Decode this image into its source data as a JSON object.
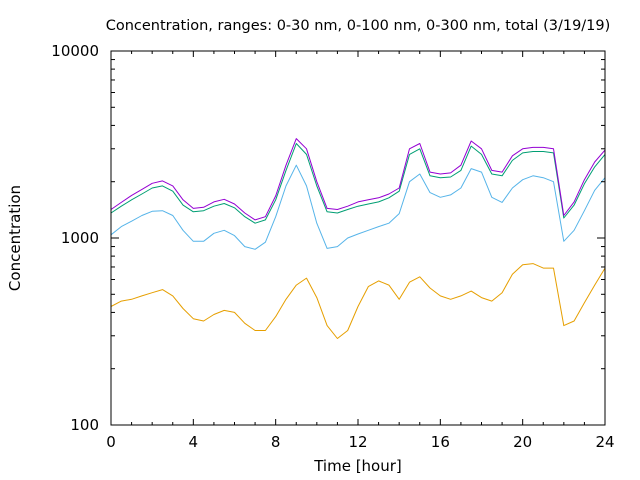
{
  "chart_data": {
    "type": "line",
    "title": "Concentration, ranges: 0-30 nm, 0-100 nm, 0-300 nm, total (3/19/19)",
    "xlabel": "Time [hour]",
    "ylabel": "Concentration",
    "xlim": [
      0,
      24
    ],
    "ylim": [
      100,
      10000
    ],
    "yscale": "log",
    "grid": false,
    "legend": "none",
    "x_ticks": [
      {
        "value": 0,
        "label": "0"
      },
      {
        "value": 4,
        "label": "4"
      },
      {
        "value": 8,
        "label": "8"
      },
      {
        "value": 12,
        "label": "12"
      },
      {
        "value": 16,
        "label": "16"
      },
      {
        "value": 20,
        "label": "20"
      },
      {
        "value": 24,
        "label": "24"
      }
    ],
    "y_ticks": [
      {
        "value": 100,
        "label": "100"
      },
      {
        "value": 1000,
        "label": "1000"
      },
      {
        "value": 10000,
        "label": "10000"
      }
    ],
    "series": [
      {
        "color": "#e69f00",
        "x": [
          0,
          0.5,
          1,
          1.5,
          2,
          2.5,
          3,
          3.5,
          4,
          4.5,
          5,
          5.5,
          6,
          6.5,
          7,
          7.5,
          8,
          8.5,
          9,
          9.5,
          10,
          10.5,
          11,
          11.5,
          12,
          12.5,
          13,
          13.5,
          14,
          14.5,
          15,
          15.5,
          16,
          16.5,
          17,
          17.5,
          18,
          18.5,
          19,
          19.5,
          20,
          20.5,
          21,
          21.5,
          22,
          22.5,
          23,
          23.5,
          24
        ],
        "y": [
          430,
          460,
          470,
          490,
          510,
          530,
          490,
          420,
          370,
          360,
          390,
          410,
          400,
          350,
          320,
          320,
          380,
          470,
          560,
          610,
          480,
          340,
          290,
          320,
          430,
          550,
          590,
          560,
          470,
          580,
          620,
          540,
          490,
          470,
          490,
          520,
          480,
          460,
          510,
          640,
          720,
          730,
          690,
          690,
          340,
          360,
          450,
          560,
          690
        ]
      },
      {
        "color": "#56b4e9",
        "x": [
          0,
          0.5,
          1,
          1.5,
          2,
          2.5,
          3,
          3.5,
          4,
          4.5,
          5,
          5.5,
          6,
          6.5,
          7,
          7.5,
          8,
          8.5,
          9,
          9.5,
          10,
          10.5,
          11,
          11.5,
          12,
          12.5,
          13,
          13.5,
          14,
          14.5,
          15,
          15.5,
          16,
          16.5,
          17,
          17.5,
          18,
          18.5,
          19,
          19.5,
          20,
          20.5,
          21,
          21.5,
          22,
          22.5,
          23,
          23.5,
          24
        ],
        "y": [
          1040,
          1150,
          1230,
          1320,
          1390,
          1400,
          1320,
          1100,
          960,
          960,
          1060,
          1100,
          1030,
          900,
          870,
          950,
          1300,
          1900,
          2450,
          1900,
          1200,
          880,
          900,
          1000,
          1050,
          1100,
          1150,
          1200,
          1350,
          2000,
          2200,
          1750,
          1650,
          1700,
          1850,
          2350,
          2250,
          1650,
          1550,
          1850,
          2050,
          2150,
          2100,
          2000,
          960,
          1100,
          1400,
          1800,
          2100
        ]
      },
      {
        "color": "#009e73",
        "x": [
          0,
          0.5,
          1,
          1.5,
          2,
          2.5,
          3,
          3.5,
          4,
          4.5,
          5,
          5.5,
          6,
          6.5,
          7,
          7.5,
          8,
          8.5,
          9,
          9.5,
          10,
          10.5,
          11,
          11.5,
          12,
          12.5,
          13,
          13.5,
          14,
          14.5,
          15,
          15.5,
          16,
          16.5,
          17,
          17.5,
          18,
          18.5,
          19,
          19.5,
          20,
          20.5,
          21,
          21.5,
          22,
          22.5,
          23,
          23.5,
          24
        ],
        "y": [
          1360,
          1480,
          1600,
          1720,
          1850,
          1900,
          1780,
          1500,
          1380,
          1400,
          1480,
          1530,
          1450,
          1300,
          1200,
          1250,
          1600,
          2300,
          3200,
          2800,
          1900,
          1380,
          1360,
          1420,
          1480,
          1520,
          1560,
          1640,
          1780,
          2800,
          3000,
          2150,
          2100,
          2120,
          2300,
          3100,
          2800,
          2200,
          2150,
          2600,
          2850,
          2900,
          2900,
          2850,
          1280,
          1500,
          1950,
          2400,
          2800
        ]
      },
      {
        "color": "#9400d3",
        "x": [
          0,
          0.5,
          1,
          1.5,
          2,
          2.5,
          3,
          3.5,
          4,
          4.5,
          5,
          5.5,
          6,
          6.5,
          7,
          7.5,
          8,
          8.5,
          9,
          9.5,
          10,
          10.5,
          11,
          11.5,
          12,
          12.5,
          13,
          13.5,
          14,
          14.5,
          15,
          15.5,
          16,
          16.5,
          17,
          17.5,
          18,
          18.5,
          19,
          19.5,
          20,
          20.5,
          21,
          21.5,
          22,
          22.5,
          23,
          23.5,
          24
        ],
        "y": [
          1420,
          1550,
          1690,
          1820,
          1960,
          2020,
          1900,
          1600,
          1440,
          1460,
          1560,
          1610,
          1520,
          1360,
          1250,
          1300,
          1680,
          2450,
          3400,
          3000,
          2000,
          1440,
          1420,
          1480,
          1560,
          1600,
          1640,
          1720,
          1850,
          3000,
          3200,
          2250,
          2200,
          2230,
          2450,
          3300,
          3000,
          2300,
          2250,
          2750,
          3000,
          3050,
          3050,
          3000,
          1320,
          1560,
          2050,
          2550,
          2950
        ]
      }
    ]
  }
}
